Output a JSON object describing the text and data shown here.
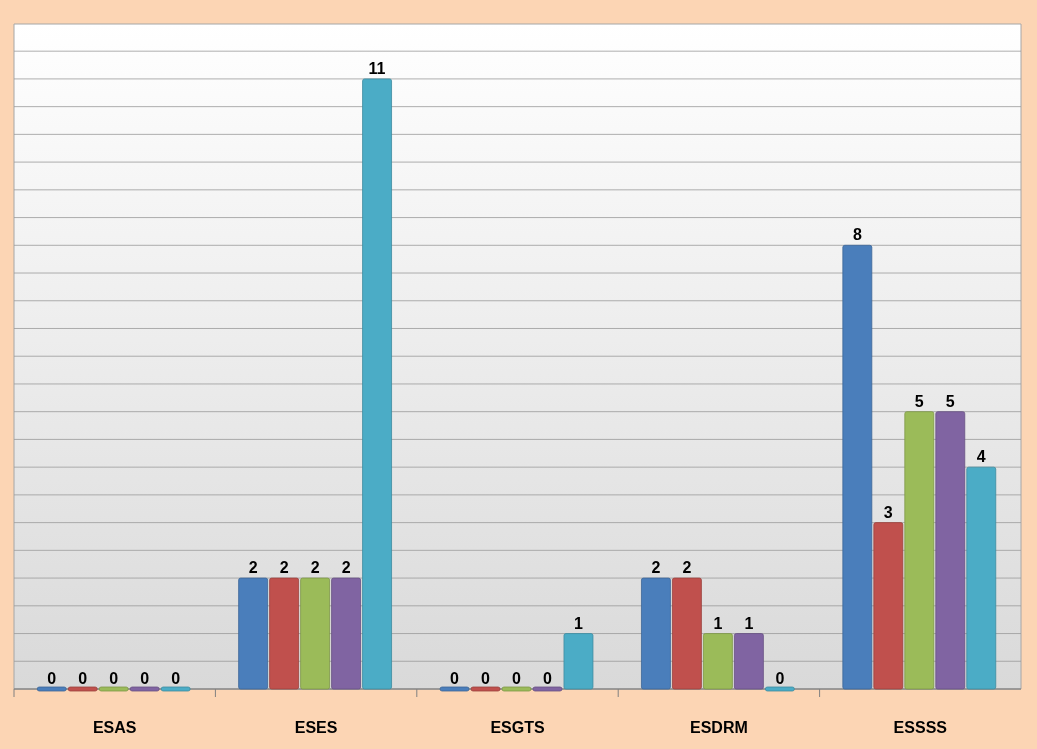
{
  "chart_data": {
    "type": "bar",
    "categories": [
      "ESAS",
      "ESES",
      "ESGTS",
      "ESDRM",
      "ESSSS"
    ],
    "series": [
      {
        "color": "#4a7ebb",
        "values": [
          0,
          2,
          0,
          2,
          8
        ]
      },
      {
        "color": "#c0504d",
        "values": [
          0,
          2,
          0,
          2,
          3
        ]
      },
      {
        "color": "#9bbb59",
        "values": [
          0,
          2,
          0,
          1,
          5
        ]
      },
      {
        "color": "#8064a2",
        "values": [
          0,
          2,
          0,
          1,
          5
        ]
      },
      {
        "color": "#4bacc6",
        "values": [
          0,
          11,
          1,
          0,
          4
        ]
      }
    ],
    "grid": "y",
    "data_labels": true
  }
}
